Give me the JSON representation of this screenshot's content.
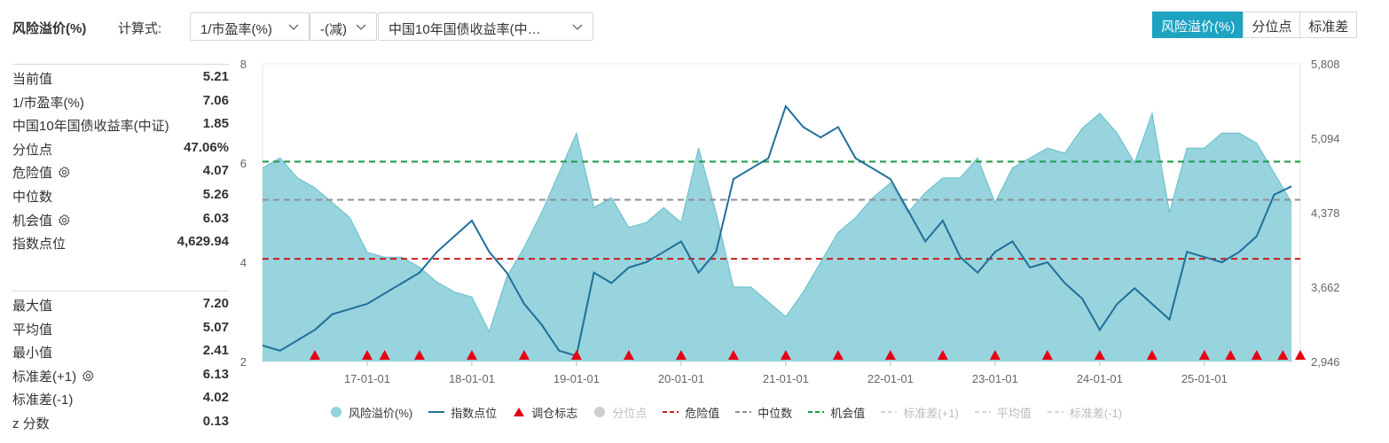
{
  "header": {
    "title": "风险溢价(%)",
    "formula_label": "计算式:",
    "select1": "1/市盈率(%)",
    "select2": "-(减)",
    "select3": "中国10年国债收益率(中…",
    "tabs": [
      {
        "label": "风险溢价(%)",
        "active": true
      },
      {
        "label": "分位点",
        "active": false
      },
      {
        "label": "标准差",
        "active": false
      }
    ]
  },
  "stats_top": [
    {
      "label": "当前值",
      "value": "5.21",
      "gear": false
    },
    {
      "label": "1/市盈率(%)",
      "value": "7.06",
      "gear": false
    },
    {
      "label": "中国10年国债收益率(中证)",
      "value": "1.85",
      "gear": false
    },
    {
      "label": "分位点",
      "value": "47.06%",
      "gear": false
    },
    {
      "label": "危险值",
      "value": "4.07",
      "gear": true
    },
    {
      "label": "中位数",
      "value": "5.26",
      "gear": false
    },
    {
      "label": "机会值",
      "value": "6.03",
      "gear": true
    },
    {
      "label": "指数点位",
      "value": "4,629.94",
      "gear": false
    }
  ],
  "stats_bottom": [
    {
      "label": "最大值",
      "value": "7.20",
      "gear": false
    },
    {
      "label": "平均值",
      "value": "5.07",
      "gear": false
    },
    {
      "label": "最小值",
      "value": "2.41",
      "gear": false
    },
    {
      "label": "标准差(+1)",
      "value": "6.13",
      "gear": true
    },
    {
      "label": "标准差(-1)",
      "value": "4.02",
      "gear": false
    },
    {
      "label": "z 分数",
      "value": "0.13",
      "gear": false
    }
  ],
  "colors": {
    "accent": "#1ea3c2",
    "area_fill": "#92d2db",
    "area_stroke": "#6fc3cf",
    "index_line": "#1f6f9a",
    "marker": "#e60012",
    "danger": "#c81e1e",
    "median": "#8a8f99",
    "opportunity": "#1e9a4b"
  },
  "legend": [
    {
      "label": "风险溢价(%)",
      "kind": "area-dot",
      "active": true
    },
    {
      "label": "指数点位",
      "kind": "line",
      "active": true
    },
    {
      "label": "调仓标志",
      "kind": "triangle",
      "active": true
    },
    {
      "label": "分位点",
      "kind": "gray-dot",
      "active": false
    },
    {
      "label": "危险值",
      "kind": "dash-red",
      "active": true
    },
    {
      "label": "中位数",
      "kind": "dash-gray",
      "active": true
    },
    {
      "label": "机会值",
      "kind": "dash-green",
      "active": true
    },
    {
      "label": "标准差(+1)",
      "kind": "dash-light",
      "active": false
    },
    {
      "label": "平均值",
      "kind": "dash-light",
      "active": false
    },
    {
      "label": "标准差(-1)",
      "kind": "dash-light",
      "active": false
    }
  ],
  "chart_data": {
    "type": "area+line",
    "x_start": "2016-01",
    "x_end": "2025-12",
    "x_ticks": [
      "17-01-01",
      "18-01-01",
      "19-01-01",
      "20-01-01",
      "21-01-01",
      "22-01-01",
      "23-01-01",
      "24-01-01",
      "25-01-01"
    ],
    "y_left": {
      "min": 2,
      "max": 8,
      "ticks": [
        "2",
        "4",
        "6",
        "8"
      ]
    },
    "y_right": {
      "min": 2946,
      "max": 5808,
      "ticks": [
        "2,946",
        "3,662",
        "4,378",
        "5,094",
        "5,808"
      ]
    },
    "reference_lines": {
      "danger": 4.07,
      "median": 5.26,
      "opportunity": 6.03
    },
    "series": [
      {
        "name": "风险溢价(%)",
        "axis": "left",
        "x": [
          "2016-01",
          "2016-03",
          "2016-05",
          "2016-07",
          "2016-09",
          "2016-11",
          "2017-01",
          "2017-03",
          "2017-05",
          "2017-07",
          "2017-09",
          "2017-11",
          "2018-01",
          "2018-03",
          "2018-05",
          "2018-07",
          "2018-09",
          "2018-11",
          "2019-01",
          "2019-03",
          "2019-05",
          "2019-07",
          "2019-09",
          "2019-11",
          "2020-01",
          "2020-03",
          "2020-05",
          "2020-07",
          "2020-09",
          "2020-11",
          "2021-01",
          "2021-03",
          "2021-05",
          "2021-07",
          "2021-09",
          "2021-11",
          "2022-01",
          "2022-03",
          "2022-05",
          "2022-07",
          "2022-09",
          "2022-11",
          "2023-01",
          "2023-03",
          "2023-05",
          "2023-07",
          "2023-09",
          "2023-11",
          "2024-01",
          "2024-03",
          "2024-05",
          "2024-07",
          "2024-09",
          "2024-11",
          "2025-01",
          "2025-03",
          "2025-05",
          "2025-07",
          "2025-09",
          "2025-11"
        ],
        "values": [
          5.9,
          6.1,
          5.7,
          5.5,
          5.2,
          4.9,
          4.2,
          4.1,
          4.1,
          3.9,
          3.6,
          3.4,
          3.3,
          2.6,
          3.7,
          4.3,
          5.0,
          5.8,
          6.6,
          5.1,
          5.3,
          4.7,
          4.8,
          5.1,
          4.8,
          6.3,
          5.0,
          3.5,
          3.5,
          3.2,
          2.9,
          3.4,
          4.0,
          4.6,
          4.9,
          5.3,
          5.6,
          5.0,
          5.4,
          5.7,
          5.7,
          6.1,
          5.2,
          5.9,
          6.1,
          6.3,
          6.2,
          6.7,
          7.0,
          6.6,
          6.0,
          7.0,
          5.0,
          6.3,
          6.3,
          6.6,
          6.6,
          6.4,
          5.8,
          5.2
        ]
      },
      {
        "name": "指数点位",
        "axis": "right",
        "x": [
          "2016-01",
          "2016-03",
          "2016-05",
          "2016-07",
          "2016-09",
          "2016-11",
          "2017-01",
          "2017-03",
          "2017-05",
          "2017-07",
          "2017-09",
          "2017-11",
          "2018-01",
          "2018-03",
          "2018-05",
          "2018-07",
          "2018-09",
          "2018-11",
          "2019-01",
          "2019-03",
          "2019-05",
          "2019-07",
          "2019-09",
          "2019-11",
          "2020-01",
          "2020-03",
          "2020-05",
          "2020-07",
          "2020-09",
          "2020-11",
          "2021-01",
          "2021-03",
          "2021-05",
          "2021-07",
          "2021-09",
          "2021-11",
          "2022-01",
          "2022-03",
          "2022-05",
          "2022-07",
          "2022-09",
          "2022-11",
          "2023-01",
          "2023-03",
          "2023-05",
          "2023-07",
          "2023-09",
          "2023-11",
          "2024-01",
          "2024-03",
          "2024-05",
          "2024-07",
          "2024-09",
          "2024-11",
          "2025-01",
          "2025-03",
          "2025-05",
          "2025-07",
          "2025-09",
          "2025-11"
        ],
        "values": [
          3100,
          3050,
          3150,
          3250,
          3400,
          3450,
          3500,
          3600,
          3700,
          3800,
          4000,
          4150,
          4300,
          4000,
          3800,
          3500,
          3300,
          3050,
          3000,
          3800,
          3700,
          3850,
          3900,
          4000,
          4100,
          3800,
          4000,
          4700,
          4800,
          4900,
          5400,
          5200,
          5100,
          5200,
          4900,
          4800,
          4700,
          4400,
          4100,
          4300,
          3950,
          3800,
          4000,
          4100,
          3850,
          3900,
          3700,
          3550,
          3250,
          3500,
          3650,
          3500,
          3350,
          4000,
          3950,
          3900,
          4000,
          4150,
          4550,
          4630
        ]
      }
    ],
    "markers": {
      "name": "调仓标志",
      "x": [
        "2016-07",
        "2017-01",
        "2017-03",
        "2017-07",
        "2018-01",
        "2018-07",
        "2019-01",
        "2019-07",
        "2020-01",
        "2020-07",
        "2021-01",
        "2021-07",
        "2022-01",
        "2022-07",
        "2023-01",
        "2023-07",
        "2024-01",
        "2024-07",
        "2025-01",
        "2025-04",
        "2025-07",
        "2025-10",
        "2025-12"
      ]
    }
  }
}
